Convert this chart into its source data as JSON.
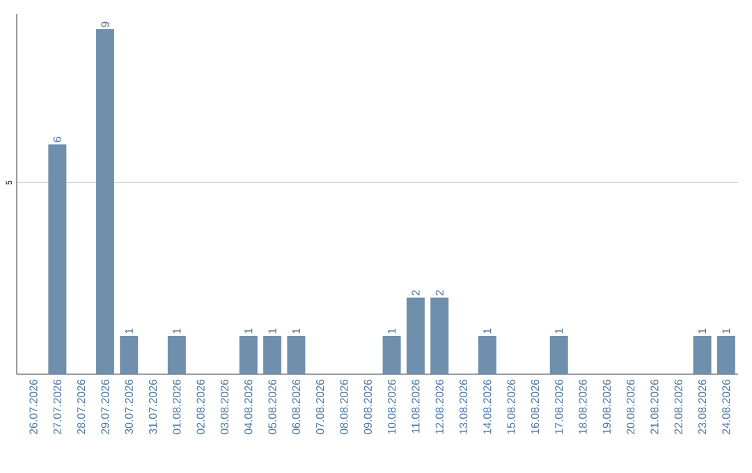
{
  "chart_data": {
    "type": "bar",
    "categories": [
      "26.07.2026",
      "27.07.2026",
      "28.07.2026",
      "29.07.2026",
      "30.07.2026",
      "31.07.2026",
      "01.08.2026",
      "02.08.2026",
      "03.08.2026",
      "04.08.2026",
      "05.08.2026",
      "06.08.2026",
      "07.08.2026",
      "08.08.2026",
      "09.08.2026",
      "10.08.2026",
      "11.08.2026",
      "12.08.2026",
      "13.08.2026",
      "14.08.2026",
      "15.08.2026",
      "16.08.2026",
      "17.08.2026",
      "18.08.2026",
      "19.08.2026",
      "20.08.2026",
      "21.08.2026",
      "22.08.2026",
      "23.08.2026",
      "24.08.2026"
    ],
    "values": [
      0,
      6,
      0,
      9,
      1,
      0,
      1,
      0,
      0,
      1,
      1,
      1,
      0,
      0,
      0,
      1,
      2,
      2,
      0,
      1,
      0,
      0,
      1,
      0,
      0,
      0,
      0,
      0,
      1,
      1
    ],
    "value_labels": [
      null,
      "6",
      null,
      "9",
      "1",
      null,
      "1",
      null,
      null,
      "1",
      "1",
      "1",
      null,
      null,
      null,
      "1",
      "2",
      "2",
      null,
      "1",
      null,
      null,
      "1",
      null,
      null,
      null,
      null,
      null,
      "1",
      "1"
    ],
    "color": "#6f8fad",
    "ylim": [
      0,
      9.4
    ],
    "yticks": [
      5
    ],
    "grid": "y",
    "legend": false
  }
}
